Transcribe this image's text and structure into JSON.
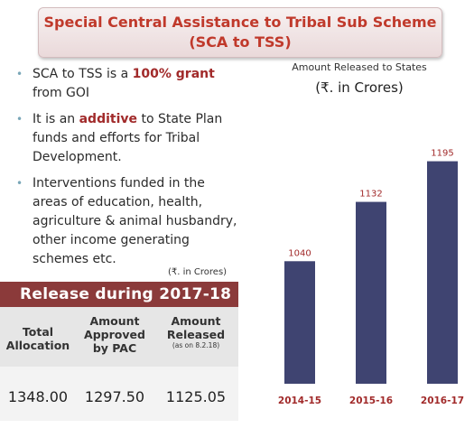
{
  "title": {
    "line1": "Special Central Assistance to Tribal Sub Scheme",
    "line2": "(SCA to TSS)"
  },
  "bullets": [
    {
      "pre": "SCA to TSS is a ",
      "highlight": "100% grant",
      "post": " from GOI"
    },
    {
      "pre": "It is an ",
      "highlight": "additive",
      "post": " to State Plan funds and efforts for Tribal Development."
    },
    {
      "pre": "Interventions funded in the areas of education, health, agriculture & animal husbandry, other income generating schemes etc.",
      "highlight": "",
      "post": ""
    }
  ],
  "release": {
    "units": "(₹. in Crores)",
    "header": "Release during 2017-18",
    "col1": "Total Allocation",
    "col2": "Amount Approved by PAC",
    "col3": "Amount Released",
    "col3_note": "(as on 8.2.18)",
    "val1": "1348.00",
    "val2": "1297.50",
    "val3": "1125.05"
  },
  "colors": {
    "bar": "#3f4471",
    "label": "#a12a2a",
    "header_bg": "#8b3a3a",
    "title": "#c0392b"
  },
  "chart_data": {
    "type": "bar",
    "title": "Amount Released to States",
    "subtitle": "(₹. in Crores)",
    "categories": [
      "2014-15",
      "2015-16",
      "2016-17"
    ],
    "values": [
      1040,
      1132,
      1195
    ],
    "data_labels": [
      "1040",
      "1132",
      "1195"
    ],
    "ylim": [
      850,
      1200
    ],
    "grid": false,
    "axis_visible": false
  }
}
